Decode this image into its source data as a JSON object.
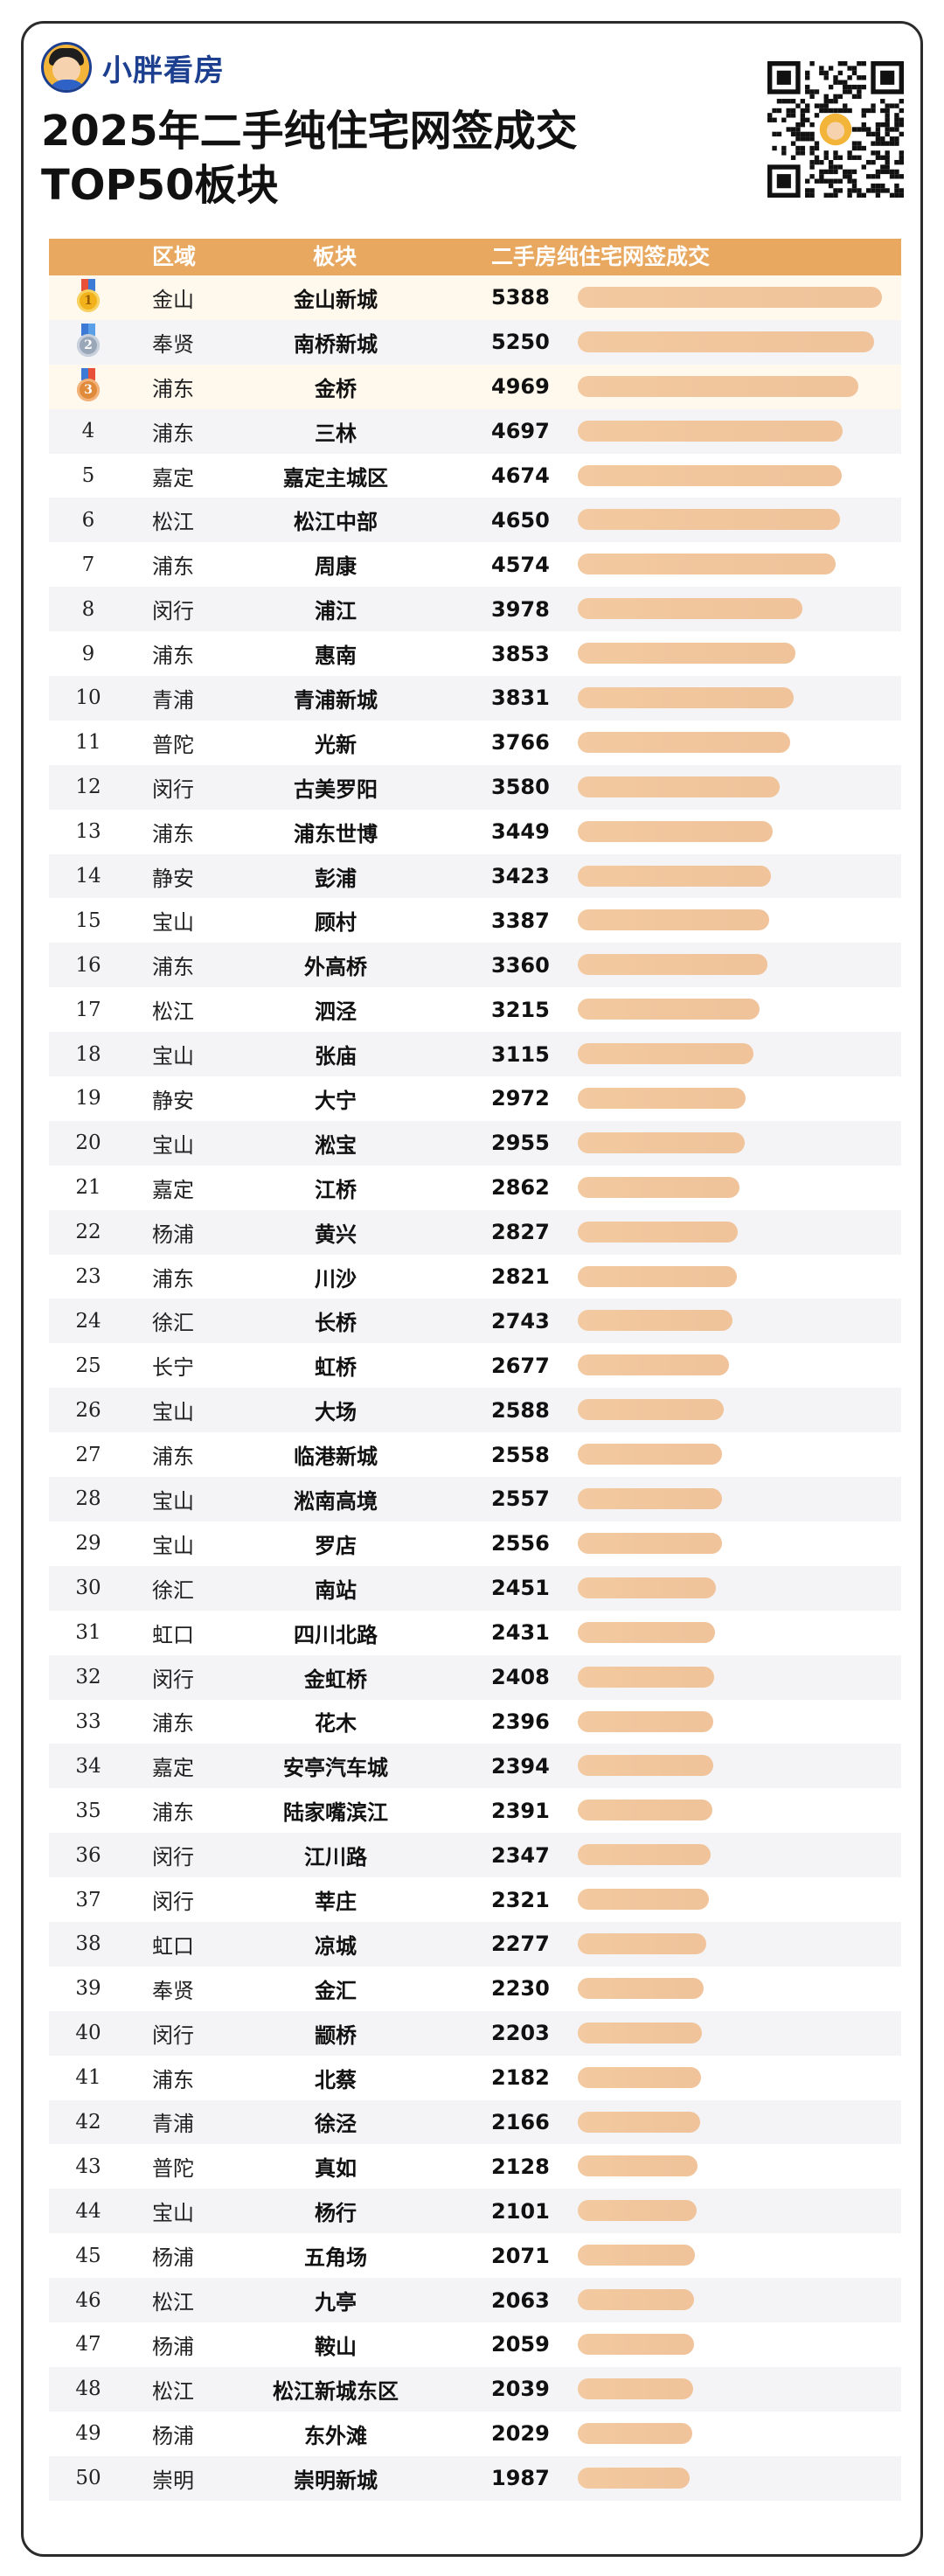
{
  "brand": {
    "name": "小胖看房",
    "logo_icon": "avatar-logo-icon"
  },
  "title": {
    "line1": "2025年二手纯住宅网签成交",
    "line2": "TOP50板块"
  },
  "colors": {
    "header": "#e9a85f",
    "bar": "#f2c9a0",
    "brand": "#1d3f8f"
  },
  "chart_data": {
    "type": "bar",
    "orientation": "horizontal",
    "title": "2025年二手纯住宅网签成交 TOP50板块",
    "columns": [
      "区域",
      "板块",
      "二手房纯住宅网签成交"
    ],
    "xlim": [
      0,
      5388
    ],
    "rows": [
      {
        "rank": 1,
        "district": "金山",
        "block": "金山新城",
        "value": 5388
      },
      {
        "rank": 2,
        "district": "奉贤",
        "block": "南桥新城",
        "value": 5250
      },
      {
        "rank": 3,
        "district": "浦东",
        "block": "金桥",
        "value": 4969
      },
      {
        "rank": 4,
        "district": "浦东",
        "block": "三林",
        "value": 4697
      },
      {
        "rank": 5,
        "district": "嘉定",
        "block": "嘉定主城区",
        "value": 4674
      },
      {
        "rank": 6,
        "district": "松江",
        "block": "松江中部",
        "value": 4650
      },
      {
        "rank": 7,
        "district": "浦东",
        "block": "周康",
        "value": 4574
      },
      {
        "rank": 8,
        "district": "闵行",
        "block": "浦江",
        "value": 3978
      },
      {
        "rank": 9,
        "district": "浦东",
        "block": "惠南",
        "value": 3853
      },
      {
        "rank": 10,
        "district": "青浦",
        "block": "青浦新城",
        "value": 3831
      },
      {
        "rank": 11,
        "district": "普陀",
        "block": "光新",
        "value": 3766
      },
      {
        "rank": 12,
        "district": "闵行",
        "block": "古美罗阳",
        "value": 3580
      },
      {
        "rank": 13,
        "district": "浦东",
        "block": "浦东世博",
        "value": 3449
      },
      {
        "rank": 14,
        "district": "静安",
        "block": "彭浦",
        "value": 3423
      },
      {
        "rank": 15,
        "district": "宝山",
        "block": "顾村",
        "value": 3387
      },
      {
        "rank": 16,
        "district": "浦东",
        "block": "外高桥",
        "value": 3360
      },
      {
        "rank": 17,
        "district": "松江",
        "block": "泗泾",
        "value": 3215
      },
      {
        "rank": 18,
        "district": "宝山",
        "block": "张庙",
        "value": 3115
      },
      {
        "rank": 19,
        "district": "静安",
        "block": "大宁",
        "value": 2972
      },
      {
        "rank": 20,
        "district": "宝山",
        "block": "淞宝",
        "value": 2955
      },
      {
        "rank": 21,
        "district": "嘉定",
        "block": "江桥",
        "value": 2862
      },
      {
        "rank": 22,
        "district": "杨浦",
        "block": "黄兴",
        "value": 2827
      },
      {
        "rank": 23,
        "district": "浦东",
        "block": "川沙",
        "value": 2821
      },
      {
        "rank": 24,
        "district": "徐汇",
        "block": "长桥",
        "value": 2743
      },
      {
        "rank": 25,
        "district": "长宁",
        "block": "虹桥",
        "value": 2677
      },
      {
        "rank": 26,
        "district": "宝山",
        "block": "大场",
        "value": 2588
      },
      {
        "rank": 27,
        "district": "浦东",
        "block": "临港新城",
        "value": 2558
      },
      {
        "rank": 28,
        "district": "宝山",
        "block": "淞南高境",
        "value": 2557
      },
      {
        "rank": 29,
        "district": "宝山",
        "block": "罗店",
        "value": 2556
      },
      {
        "rank": 30,
        "district": "徐汇",
        "block": "南站",
        "value": 2451
      },
      {
        "rank": 31,
        "district": "虹口",
        "block": "四川北路",
        "value": 2431
      },
      {
        "rank": 32,
        "district": "闵行",
        "block": "金虹桥",
        "value": 2408
      },
      {
        "rank": 33,
        "district": "浦东",
        "block": "花木",
        "value": 2396
      },
      {
        "rank": 34,
        "district": "嘉定",
        "block": "安亭汽车城",
        "value": 2394
      },
      {
        "rank": 35,
        "district": "浦东",
        "block": "陆家嘴滨江",
        "value": 2391
      },
      {
        "rank": 36,
        "district": "闵行",
        "block": "江川路",
        "value": 2347
      },
      {
        "rank": 37,
        "district": "闵行",
        "block": "莘庄",
        "value": 2321
      },
      {
        "rank": 38,
        "district": "虹口",
        "block": "凉城",
        "value": 2277
      },
      {
        "rank": 39,
        "district": "奉贤",
        "block": "金汇",
        "value": 2230
      },
      {
        "rank": 40,
        "district": "闵行",
        "block": "颛桥",
        "value": 2203
      },
      {
        "rank": 41,
        "district": "浦东",
        "block": "北蔡",
        "value": 2182
      },
      {
        "rank": 42,
        "district": "青浦",
        "block": "徐泾",
        "value": 2166
      },
      {
        "rank": 43,
        "district": "普陀",
        "block": "真如",
        "value": 2128
      },
      {
        "rank": 44,
        "district": "宝山",
        "block": "杨行",
        "value": 2101
      },
      {
        "rank": 45,
        "district": "杨浦",
        "block": "五角场",
        "value": 2071
      },
      {
        "rank": 46,
        "district": "松江",
        "block": "九亭",
        "value": 2063
      },
      {
        "rank": 47,
        "district": "杨浦",
        "block": "鞍山",
        "value": 2059
      },
      {
        "rank": 48,
        "district": "松江",
        "block": "松江新城东区",
        "value": 2039
      },
      {
        "rank": 49,
        "district": "杨浦",
        "block": "东外滩",
        "value": 2029
      },
      {
        "rank": 50,
        "district": "崇明",
        "block": "崇明新城",
        "value": 1987
      }
    ]
  }
}
